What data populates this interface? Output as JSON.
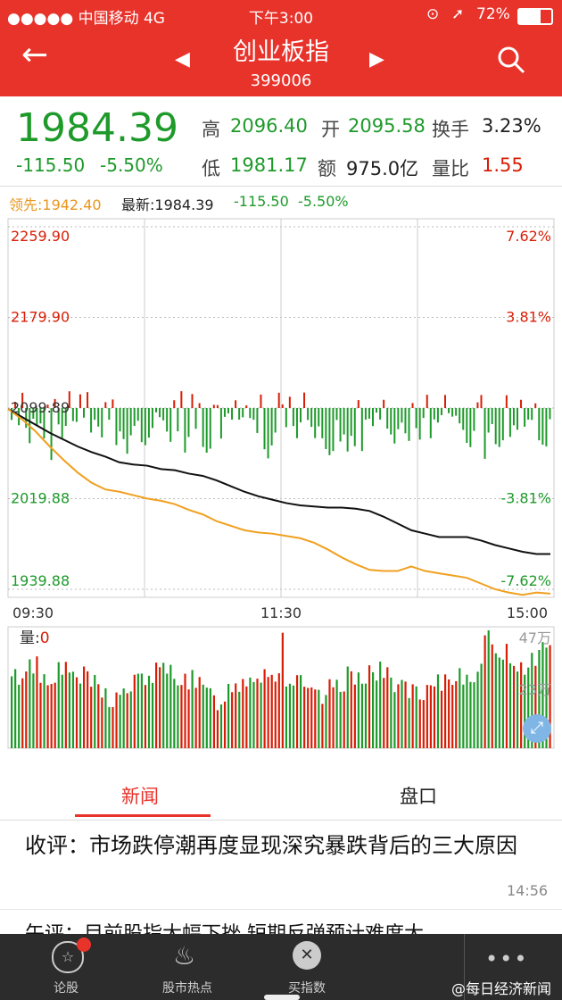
{
  "status": {
    "carrier": "●●●●● 中国移动  4G",
    "time": "下午3:00",
    "battery": "72%"
  },
  "header": {
    "title": "创业板指",
    "code": "399006"
  },
  "quote": {
    "price": "1984.39",
    "change": "-115.50",
    "change_pct": "-5.50%",
    "high_label": "高",
    "high": "2096.40",
    "open_label": "开",
    "open": "2095.58",
    "turnover_label": "换手",
    "turnover": "3.23%",
    "low_label": "低",
    "low": "1981.17",
    "amount_label": "额",
    "amount": "975.0亿",
    "vol_ratio_label": "量比",
    "vol_ratio": "1.55"
  },
  "legend": {
    "lead": "领先:1942.40",
    "latest": "最新:1984.39",
    "chg": "-115.50",
    "pct": "-5.50%"
  },
  "chart_data": {
    "type": "line",
    "y_ticks_left": [
      "2259.90",
      "2179.90",
      "2099.89",
      "2019.88",
      "1939.88"
    ],
    "y_ticks_right": [
      "7.62%",
      "3.81%",
      "",
      "-3.81%",
      "-7.62%"
    ],
    "x_ticks": [
      "09:30",
      "11:30",
      "15:00"
    ],
    "ylim": [
      1939.88,
      2259.9
    ],
    "base": 2099.89,
    "series": [
      {
        "values": [
          2099,
          2092,
          2085,
          2078,
          2072,
          2066,
          2061,
          2057,
          2052,
          2050,
          2049,
          2046,
          2045,
          2042,
          2040,
          2036,
          2031,
          2026,
          2022,
          2019,
          2016,
          2014,
          2013,
          2012,
          2012,
          2011,
          2009,
          2004,
          1998,
          1992,
          1989,
          1986,
          1986,
          1986,
          1983,
          1979,
          1976,
          1973,
          1971,
          1971
        ]
      },
      {
        "values": [
          2099,
          2090,
          2079,
          2066,
          2054,
          2043,
          2034,
          2028,
          2026,
          2023,
          2020,
          2018,
          2015,
          2010,
          2006,
          2000,
          1996,
          1992,
          1990,
          1989,
          1987,
          1985,
          1981,
          1975,
          1968,
          1962,
          1957,
          1956,
          1956,
          1960,
          1956,
          1954,
          1952,
          1950,
          1945,
          1940,
          1937,
          1935,
          1937,
          1936
        ]
      }
    ],
    "volume_label": "量:0",
    "volume_max": "47万",
    "volume_mid": "23万"
  },
  "tabs": {
    "news": "新闻",
    "pankou": "盘口"
  },
  "news": [
    {
      "title": "收评：市场跌停潮再度显现深究暴跌背后的三大原因",
      "time": "14:56"
    }
  ],
  "next_news_partial": "午评：目前股指大幅下挫 短期反弹预计难度大",
  "nav": [
    "论股",
    "股市热点",
    "买指数"
  ],
  "watermark": "@每日经济新闻"
}
